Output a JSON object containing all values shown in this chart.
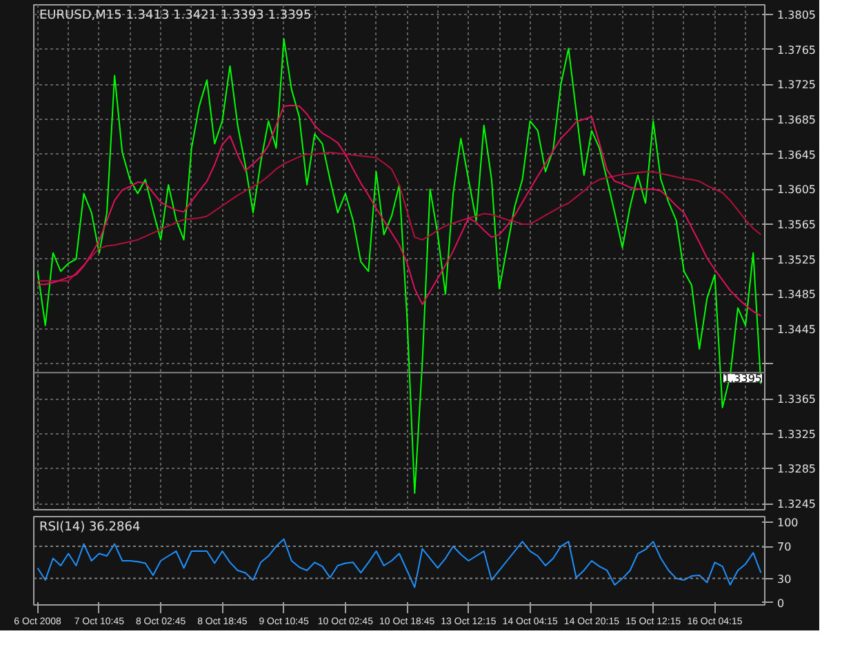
{
  "chart_data": [
    {
      "type": "line",
      "title": "EURUSD,M15  1.3413 1.3421 1.3393 1.3395",
      "ylim": [
        1.3238,
        1.3816
      ],
      "categories": [
        null,
        null,
        null,
        null,
        null,
        null,
        null,
        null,
        null,
        null,
        null,
        null,
        null,
        null,
        null,
        null,
        null,
        null,
        null,
        null,
        null,
        null,
        null,
        null,
        null,
        null,
        null,
        null,
        null,
        null,
        null,
        null,
        null,
        null,
        null,
        null,
        null,
        null,
        null,
        null,
        null,
        null,
        null,
        null,
        null,
        null,
        null,
        null,
        null,
        null,
        null,
        null,
        null,
        null,
        null,
        null,
        null,
        null,
        null,
        null,
        null,
        null,
        null,
        null,
        null,
        null,
        null,
        null,
        null,
        null,
        null,
        null,
        null,
        null,
        null,
        null,
        null,
        null,
        null,
        null,
        null,
        null,
        null,
        null,
        null,
        null,
        null,
        null,
        null,
        null,
        null,
        null,
        null,
        null,
        null
      ],
      "yticks": [
        1.3245,
        1.3285,
        1.3325,
        1.3365,
        {
          "value": 1.3405,
          "label": null
        },
        1.3445,
        1.3485,
        1.3525,
        1.3565,
        1.3605,
        1.3645,
        1.3685,
        1.3725,
        1.3765,
        1.3805
      ],
      "tick_labels": "y",
      "grid": true,
      "ref_lines": [
        {
          "axis": "y",
          "value": 1.3395,
          "label": "1.3395",
          "color": "#808080"
        }
      ],
      "series": [
        {
          "color": "#00ff00",
          "values": [
            1.3511,
            1.3449,
            1.3532,
            1.3511,
            1.352,
            1.3525,
            1.36,
            1.3578,
            1.3532,
            1.3578,
            1.3735,
            1.3647,
            1.3616,
            1.36,
            1.3616,
            1.358,
            1.3547,
            1.361,
            1.357,
            1.3547,
            1.3652,
            1.37,
            1.373,
            1.3657,
            1.3683,
            1.3746,
            1.3678,
            1.3632,
            1.3578,
            1.3636,
            1.3683,
            1.3652,
            1.3777,
            1.3719,
            1.3688,
            1.361,
            1.3668,
            1.3657,
            1.3616,
            1.3578,
            1.36,
            1.3569,
            1.3522,
            1.3511,
            1.3625,
            1.3553,
            1.3574,
            1.361,
            1.346,
            1.3257,
            1.3407,
            1.3605,
            1.3553,
            1.3485,
            1.36,
            1.3663,
            1.3616,
            1.3569,
            1.3678,
            1.3616,
            1.3491,
            1.3538,
            1.3585,
            1.3616,
            1.3683,
            1.3672,
            1.3625,
            1.365,
            1.3725,
            1.3766,
            1.3694,
            1.3621,
            1.3672,
            1.3652,
            1.3616,
            1.3578,
            1.3538,
            1.3585,
            1.3621,
            1.3589,
            1.3683,
            1.3616,
            1.359,
            1.3569,
            1.3511,
            1.3495,
            1.3422,
            1.348,
            1.3507,
            1.3355,
            1.3391,
            1.3469,
            1.3449,
            1.3532,
            1.3382
          ]
        },
        {
          "color": "#b0103c",
          "values": [
            1.35,
            1.35,
            1.35,
            1.35,
            1.35,
            1.3509,
            1.3518,
            1.3528,
            1.3537,
            1.354,
            1.3541,
            1.3543,
            1.3545,
            1.3547,
            1.3551,
            1.3555,
            1.3559,
            1.3563,
            1.3567,
            1.357,
            1.3571,
            1.3572,
            1.3574,
            1.358,
            1.3586,
            1.3592,
            1.3598,
            1.3603,
            1.3608,
            1.3613,
            1.362,
            1.3628,
            1.3634,
            1.3638,
            1.3642,
            1.3645,
            1.3645,
            1.3646,
            1.3647,
            1.3646,
            1.3645,
            1.3644,
            1.3643,
            1.3642,
            1.3641,
            1.3635,
            1.3628,
            1.361,
            1.358,
            1.355,
            1.3547,
            1.3552,
            1.3558,
            1.3563,
            1.3566,
            1.3569,
            1.3572,
            1.3574,
            1.3577,
            1.3576,
            1.3573,
            1.357,
            1.3568,
            1.3565,
            1.3565,
            1.357,
            1.3575,
            1.358,
            1.3585,
            1.3589,
            1.3596,
            1.3603,
            1.3611,
            1.3616,
            1.3618,
            1.362,
            1.3622,
            1.3623,
            1.3624,
            1.3625,
            1.3625,
            1.3623,
            1.3621,
            1.3619,
            1.3617,
            1.3616,
            1.3614,
            1.3609,
            1.3605,
            1.3601,
            1.3592,
            1.3581,
            1.357,
            1.356,
            1.3553
          ]
        },
        {
          "color": "#e0105a",
          "values": [
            1.3496,
            1.3496,
            1.3498,
            1.3501,
            1.3504,
            1.3507,
            1.3517,
            1.3531,
            1.3546,
            1.3569,
            1.3592,
            1.3604,
            1.3608,
            1.3613,
            1.3612,
            1.3601,
            1.359,
            1.3585,
            1.3581,
            1.3579,
            1.3591,
            1.3603,
            1.3614,
            1.3633,
            1.3656,
            1.3666,
            1.3644,
            1.3626,
            1.3634,
            1.3642,
            1.3655,
            1.3678,
            1.37,
            1.3701,
            1.37,
            1.3691,
            1.3678,
            1.3669,
            1.3664,
            1.3658,
            1.3645,
            1.3628,
            1.3612,
            1.3598,
            1.3583,
            1.3569,
            1.3555,
            1.3541,
            1.3521,
            1.3491,
            1.3473,
            1.3488,
            1.3503,
            1.3518,
            1.3534,
            1.3553,
            1.3572,
            1.3567,
            1.3558,
            1.355,
            1.3553,
            1.3563,
            1.3575,
            1.359,
            1.3605,
            1.362,
            1.3634,
            1.3649,
            1.3663,
            1.3672,
            1.3682,
            1.3685,
            1.3688,
            1.3658,
            1.3627,
            1.3614,
            1.3611,
            1.3607,
            1.3605,
            1.3605,
            1.3605,
            1.3603,
            1.3595,
            1.3586,
            1.3578,
            1.3561,
            1.3544,
            1.3526,
            1.3513,
            1.3501,
            1.3489,
            1.348,
            1.3472,
            1.3465,
            1.346
          ]
        }
      ]
    },
    {
      "type": "line",
      "title": "RSI(14) 36.2864",
      "ylim": [
        -3,
        107
      ],
      "categories": [
        "6 Oct 2008",
        null,
        null,
        null,
        null,
        null,
        null,
        null,
        "7 Oct 10:45",
        null,
        null,
        null,
        null,
        null,
        null,
        null,
        "8 Oct 02:45",
        null,
        null,
        null,
        null,
        null,
        null,
        null,
        "8 Oct 18:45",
        null,
        null,
        null,
        null,
        null,
        null,
        null,
        "9 Oct 10:45",
        null,
        null,
        null,
        null,
        null,
        null,
        null,
        "10 Oct 02:45",
        null,
        null,
        null,
        null,
        null,
        null,
        null,
        "10 Oct 18:45",
        null,
        null,
        null,
        null,
        null,
        null,
        null,
        "13 Oct 12:15",
        null,
        null,
        null,
        null,
        null,
        null,
        null,
        "14 Oct 04:15",
        null,
        null,
        null,
        null,
        null,
        null,
        null,
        "14 Oct 20:15",
        null,
        null,
        null,
        null,
        null,
        null,
        null,
        "15 Oct 12:15",
        null,
        null,
        null,
        null,
        null,
        null,
        null,
        "16 Oct 04:15",
        null,
        null,
        null,
        null,
        null,
        null
      ],
      "yticks": [
        0,
        30,
        70,
        100
      ],
      "ref_lines": [
        {
          "axis": "y",
          "value": 30,
          "label": null,
          "color": "#808080",
          "line_style": "dashed"
        },
        {
          "axis": "y",
          "value": 70,
          "label": null,
          "color": "#808080",
          "line_style": "dashed"
        }
      ],
      "series": [
        {
          "color": "#1e90ff",
          "values": [
            43,
            28,
            55,
            46,
            61,
            46,
            73,
            52,
            61,
            58,
            73,
            52,
            52,
            51,
            49,
            34,
            52,
            58,
            64,
            43,
            64,
            64,
            64,
            49,
            64,
            50,
            40,
            37,
            28,
            50,
            58,
            70,
            79,
            52,
            44,
            40,
            50,
            45,
            31,
            46,
            49,
            50,
            37,
            50,
            64,
            46,
            52,
            61,
            40,
            19,
            67,
            55,
            43,
            55,
            70,
            60,
            52,
            58,
            64,
            28,
            40,
            52,
            64,
            76,
            64,
            58,
            46,
            55,
            70,
            76,
            31,
            40,
            52,
            45,
            40,
            22,
            30,
            40,
            61,
            66,
            76,
            55,
            40,
            30,
            28,
            33,
            34,
            25,
            50,
            45,
            22,
            40,
            48,
            62,
            37
          ]
        }
      ]
    }
  ]
}
